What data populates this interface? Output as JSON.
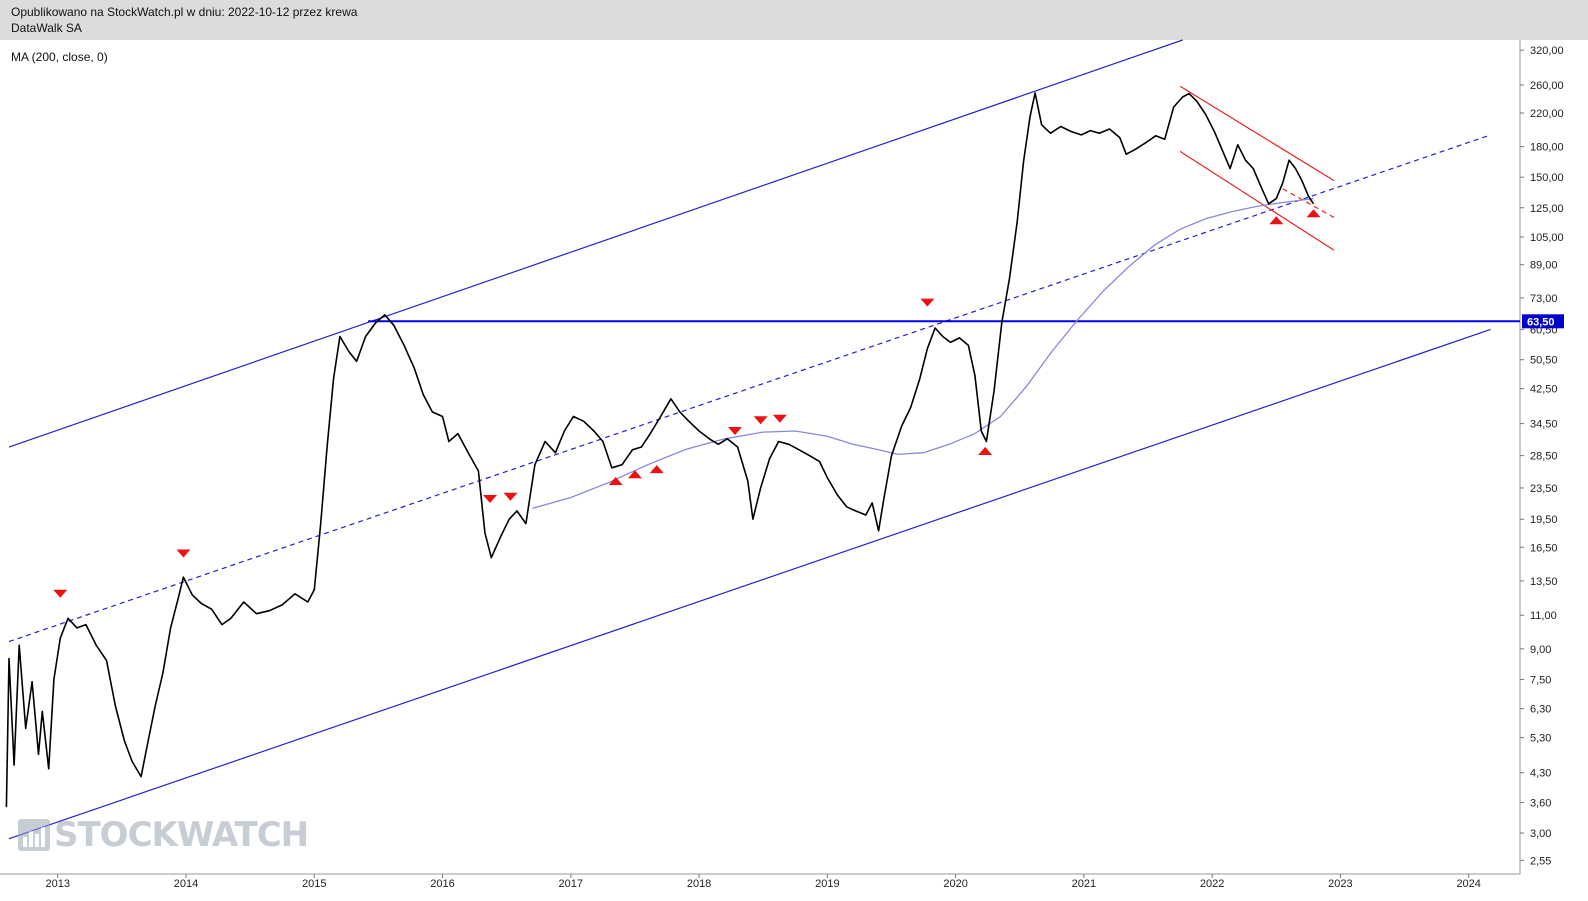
{
  "header": {
    "published_line": "Opublikowano na StockWatch.pl w dniu: 2022-10-12 przez krewa",
    "instrument": "DataWalk SA"
  },
  "indicator": {
    "label": "MA (200, close, 0)"
  },
  "watermark": {
    "text": "STOCKWATCH"
  },
  "colors": {
    "price": "#000000",
    "channel": "#2222cc",
    "ma": "#8888dd",
    "horizontal": "#0000ee",
    "red_channel": "#ee2222",
    "marker": "#ee1111",
    "price_tag_bg": "#0000cc"
  },
  "chart_data": {
    "type": "line",
    "scale": "log",
    "xlim": [
      2012.55,
      2024.4
    ],
    "ylim": [
      2.35,
      340
    ],
    "x_ticks": [
      "2013",
      "2014",
      "2015",
      "2016",
      "2017",
      "2018",
      "2019",
      "2020",
      "2021",
      "2022",
      "2023",
      "2024"
    ],
    "y_ticks": [
      "320,00",
      "260,00",
      "220,00",
      "180,00",
      "150,00",
      "125,00",
      "105,00",
      "89,00",
      "73,00",
      "60,50",
      "50,50",
      "42,50",
      "34,50",
      "28,50",
      "23,50",
      "19,50",
      "16,50",
      "13,50",
      "11,00",
      "9,00",
      "7,50",
      "6,30",
      "5,30",
      "4,30",
      "3,60",
      "3,00",
      "2,55"
    ],
    "last_price_label": "63,50",
    "series": [
      {
        "role": "price",
        "points": [
          [
            2012.6,
            3.5
          ],
          [
            2012.62,
            8.5
          ],
          [
            2012.66,
            4.5
          ],
          [
            2012.7,
            9.2
          ],
          [
            2012.75,
            5.6
          ],
          [
            2012.8,
            7.4
          ],
          [
            2012.85,
            4.8
          ],
          [
            2012.88,
            6.2
          ],
          [
            2012.93,
            4.4
          ],
          [
            2012.97,
            7.5
          ],
          [
            2013.02,
            9.6
          ],
          [
            2013.08,
            10.8
          ],
          [
            2013.15,
            10.2
          ],
          [
            2013.22,
            10.4
          ],
          [
            2013.3,
            9.2
          ],
          [
            2013.38,
            8.4
          ],
          [
            2013.45,
            6.4
          ],
          [
            2013.52,
            5.2
          ],
          [
            2013.58,
            4.6
          ],
          [
            2013.65,
            4.2
          ],
          [
            2013.7,
            5.1
          ],
          [
            2013.76,
            6.4
          ],
          [
            2013.82,
            7.8
          ],
          [
            2013.88,
            10.2
          ],
          [
            2013.94,
            12.2
          ],
          [
            2013.98,
            13.8
          ],
          [
            2014.05,
            12.4
          ],
          [
            2014.12,
            11.8
          ],
          [
            2014.2,
            11.4
          ],
          [
            2014.28,
            10.4
          ],
          [
            2014.35,
            10.8
          ],
          [
            2014.45,
            11.9
          ],
          [
            2014.55,
            11.1
          ],
          [
            2014.65,
            11.3
          ],
          [
            2014.75,
            11.7
          ],
          [
            2014.85,
            12.5
          ],
          [
            2014.95,
            11.9
          ],
          [
            2015.0,
            12.8
          ],
          [
            2015.05,
            19.0
          ],
          [
            2015.1,
            30.0
          ],
          [
            2015.15,
            45.0
          ],
          [
            2015.2,
            58.0
          ],
          [
            2015.27,
            53.0
          ],
          [
            2015.33,
            50.0
          ],
          [
            2015.4,
            58.0
          ],
          [
            2015.48,
            63.0
          ],
          [
            2015.55,
            66.0
          ],
          [
            2015.62,
            62.0
          ],
          [
            2015.7,
            55.0
          ],
          [
            2015.78,
            48.0
          ],
          [
            2015.85,
            41.0
          ],
          [
            2015.92,
            37.0
          ],
          [
            2016.0,
            36.0
          ],
          [
            2016.05,
            31.0
          ],
          [
            2016.12,
            32.5
          ],
          [
            2016.2,
            29.0
          ],
          [
            2016.28,
            26.0
          ],
          [
            2016.33,
            18.0
          ],
          [
            2016.38,
            15.5
          ],
          [
            2016.45,
            17.5
          ],
          [
            2016.52,
            19.5
          ],
          [
            2016.58,
            20.5
          ],
          [
            2016.65,
            19.0
          ],
          [
            2016.72,
            27.0
          ],
          [
            2016.8,
            31.0
          ],
          [
            2016.88,
            29.0
          ],
          [
            2016.95,
            33.0
          ],
          [
            2017.02,
            36.0
          ],
          [
            2017.1,
            35.0
          ],
          [
            2017.18,
            33.0
          ],
          [
            2017.25,
            31.0
          ],
          [
            2017.32,
            26.5
          ],
          [
            2017.4,
            27.0
          ],
          [
            2017.48,
            29.5
          ],
          [
            2017.55,
            30.0
          ],
          [
            2017.62,
            32.5
          ],
          [
            2017.7,
            36.0
          ],
          [
            2017.78,
            40.0
          ],
          [
            2017.85,
            37.0
          ],
          [
            2017.92,
            35.0
          ],
          [
            2018.0,
            33.0
          ],
          [
            2018.08,
            31.5
          ],
          [
            2018.15,
            30.5
          ],
          [
            2018.22,
            31.5
          ],
          [
            2018.3,
            30.0
          ],
          [
            2018.38,
            24.5
          ],
          [
            2018.42,
            19.5
          ],
          [
            2018.48,
            23.5
          ],
          [
            2018.55,
            28.0
          ],
          [
            2018.62,
            31.0
          ],
          [
            2018.7,
            30.5
          ],
          [
            2018.78,
            29.5
          ],
          [
            2018.86,
            28.5
          ],
          [
            2018.94,
            27.5
          ],
          [
            2019.0,
            25.0
          ],
          [
            2019.08,
            22.5
          ],
          [
            2019.15,
            21.0
          ],
          [
            2019.22,
            20.5
          ],
          [
            2019.3,
            20.0
          ],
          [
            2019.35,
            21.5
          ],
          [
            2019.4,
            18.2
          ],
          [
            2019.44,
            22.0
          ],
          [
            2019.5,
            28.5
          ],
          [
            2019.58,
            34.0
          ],
          [
            2019.65,
            38.0
          ],
          [
            2019.72,
            45.0
          ],
          [
            2019.78,
            54.0
          ],
          [
            2019.84,
            61.0
          ],
          [
            2019.9,
            58.0
          ],
          [
            2019.96,
            56.0
          ],
          [
            2020.03,
            57.5
          ],
          [
            2020.1,
            55.0
          ],
          [
            2020.15,
            46.0
          ],
          [
            2020.2,
            33.0
          ],
          [
            2020.24,
            31.0
          ],
          [
            2020.3,
            42.0
          ],
          [
            2020.36,
            63.0
          ],
          [
            2020.42,
            82.0
          ],
          [
            2020.48,
            115.0
          ],
          [
            2020.53,
            165.0
          ],
          [
            2020.58,
            215.0
          ],
          [
            2020.62,
            248.0
          ],
          [
            2020.67,
            205.0
          ],
          [
            2020.74,
            195.0
          ],
          [
            2020.82,
            203.0
          ],
          [
            2020.9,
            197.0
          ],
          [
            2020.98,
            193.0
          ],
          [
            2021.05,
            198.0
          ],
          [
            2021.12,
            195.0
          ],
          [
            2021.2,
            200.0
          ],
          [
            2021.28,
            190.0
          ],
          [
            2021.33,
            172.0
          ],
          [
            2021.4,
            177.0
          ],
          [
            2021.48,
            184.0
          ],
          [
            2021.56,
            192.0
          ],
          [
            2021.63,
            188.0
          ],
          [
            2021.7,
            228.0
          ],
          [
            2021.77,
            242.0
          ],
          [
            2021.82,
            247.0
          ],
          [
            2021.88,
            236.0
          ],
          [
            2021.95,
            218.0
          ],
          [
            2022.02,
            196.0
          ],
          [
            2022.08,
            176.0
          ],
          [
            2022.14,
            158.0
          ],
          [
            2022.2,
            182.0
          ],
          [
            2022.26,
            166.0
          ],
          [
            2022.32,
            158.0
          ],
          [
            2022.38,
            142.0
          ],
          [
            2022.44,
            128.0
          ],
          [
            2022.5,
            132.0
          ],
          [
            2022.55,
            145.0
          ],
          [
            2022.6,
            166.0
          ],
          [
            2022.65,
            158.0
          ],
          [
            2022.7,
            147.0
          ],
          [
            2022.75,
            134.0
          ],
          [
            2022.79,
            128.0
          ]
        ]
      },
      {
        "role": "ma200",
        "name": "MA (200, close, 0)",
        "points": [
          [
            2016.7,
            20.8
          ],
          [
            2017.0,
            22.2
          ],
          [
            2017.3,
            24.3
          ],
          [
            2017.6,
            27.0
          ],
          [
            2017.9,
            29.6
          ],
          [
            2018.2,
            31.5
          ],
          [
            2018.5,
            32.8
          ],
          [
            2018.75,
            33.0
          ],
          [
            2019.0,
            32.0
          ],
          [
            2019.2,
            30.5
          ],
          [
            2019.4,
            29.5
          ],
          [
            2019.55,
            28.7
          ],
          [
            2019.75,
            29.0
          ],
          [
            2019.95,
            30.5
          ],
          [
            2020.15,
            32.5
          ],
          [
            2020.35,
            36.0
          ],
          [
            2020.55,
            43.0
          ],
          [
            2020.75,
            53.0
          ],
          [
            2020.95,
            64.0
          ],
          [
            2021.15,
            76.0
          ],
          [
            2021.35,
            88.0
          ],
          [
            2021.55,
            100.0
          ],
          [
            2021.75,
            110.0
          ],
          [
            2021.95,
            117.0
          ],
          [
            2022.15,
            122.0
          ],
          [
            2022.35,
            126.0
          ],
          [
            2022.55,
            129.0
          ],
          [
            2022.79,
            132.0
          ]
        ]
      }
    ],
    "lines": [
      {
        "role": "channel-upper",
        "style": "solid",
        "from": [
          2012.62,
          30.0
        ],
        "to": [
          2021.77,
          340.0
        ]
      },
      {
        "role": "channel-lower",
        "style": "solid",
        "from": [
          2012.62,
          2.9
        ],
        "to": [
          2024.17,
          60.5
        ]
      },
      {
        "role": "channel-middle",
        "style": "dashed",
        "from": [
          2012.62,
          9.4
        ],
        "to": [
          2024.17,
          193.0
        ]
      },
      {
        "role": "horizontal-level",
        "style": "solid",
        "from": [
          2015.42,
          63.5
        ],
        "to": [
          2024.4,
          63.5
        ]
      },
      {
        "role": "red-upper",
        "style": "solid",
        "from": [
          2021.75,
          258.0
        ],
        "to": [
          2022.95,
          147.0
        ]
      },
      {
        "role": "red-lower",
        "style": "solid",
        "from": [
          2021.75,
          175.0
        ],
        "to": [
          2022.95,
          97.0
        ]
      },
      {
        "role": "red-mid",
        "style": "dashed",
        "from": [
          2022.55,
          140.0
        ],
        "to": [
          2022.95,
          118.0
        ]
      }
    ],
    "markers": [
      {
        "x": 2013.02,
        "y": 12.5,
        "dir": "down"
      },
      {
        "x": 2013.98,
        "y": 15.9,
        "dir": "down"
      },
      {
        "x": 2016.37,
        "y": 22.0,
        "dir": "down"
      },
      {
        "x": 2016.53,
        "y": 22.3,
        "dir": "down"
      },
      {
        "x": 2017.35,
        "y": 24.5,
        "dir": "up"
      },
      {
        "x": 2017.5,
        "y": 25.5,
        "dir": "up"
      },
      {
        "x": 2017.67,
        "y": 26.3,
        "dir": "up"
      },
      {
        "x": 2018.28,
        "y": 33.0,
        "dir": "down"
      },
      {
        "x": 2018.48,
        "y": 35.2,
        "dir": "down"
      },
      {
        "x": 2018.63,
        "y": 35.5,
        "dir": "down"
      },
      {
        "x": 2019.78,
        "y": 71.0,
        "dir": "down"
      },
      {
        "x": 2020.23,
        "y": 29.3,
        "dir": "up"
      },
      {
        "x": 2022.5,
        "y": 116.0,
        "dir": "up"
      },
      {
        "x": 2022.79,
        "y": 121.0,
        "dir": "up"
      }
    ]
  }
}
